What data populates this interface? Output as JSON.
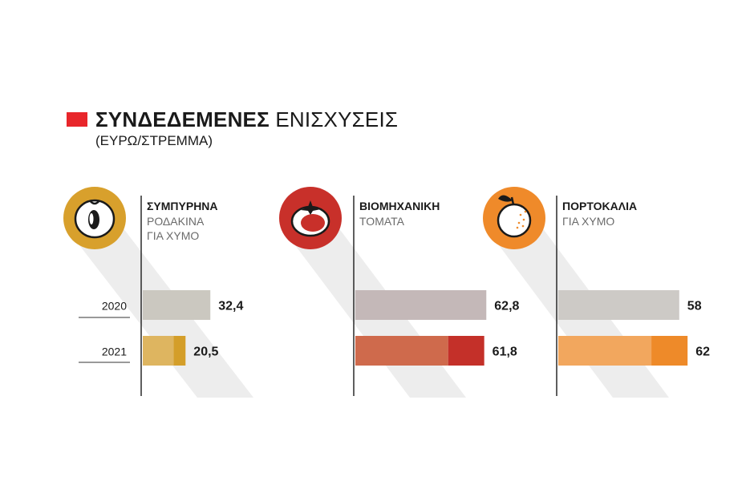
{
  "title_bold": "ΣΥΝΔΕΔΕΜΕΝΕΣ",
  "title_light": "ΕΝΙΣΧΥΣΕΙΣ",
  "subtitle": "(ΕΥΡΩ/ΣΤΡΕΜΜΑ)",
  "colors": {
    "title_box": "#e8262b",
    "text": "#1a1a1a",
    "label_light": "#6b6b6b",
    "axis": "#2a2a2a",
    "shadow": "#ededed",
    "row_line": "#333333"
  },
  "chart_data": {
    "type": "bar",
    "title": "ΣΥΝΔΕΔΕΜΕΝΕΣ ΕΝΙΣΧΥΣΕΙΣ",
    "subtitle": "(ΕΥΡΩ/ΣΤΡΕΜΜΑ)",
    "categories": [
      "2020",
      "2021"
    ],
    "xlim": [
      0,
      70
    ],
    "panels": [
      {
        "name_bold": "ΣΥΜΠΥΡΗΝΑ",
        "name_light_lines": [
          "ΡΟΔΑΚΙΝΑ",
          "ΓΙΑ ΧΥΜΟ"
        ],
        "icon": "peach-icon",
        "icon_color": "#d8a02c",
        "color_2020": "#cbc8c0",
        "color_2021_light": "#deb560",
        "color_2021_dark": "#d49e29",
        "values": [
          32.4,
          20.5
        ],
        "labels": [
          "32,4",
          "20,5"
        ]
      },
      {
        "name_bold": "ΒΙΟΜΗΧΑΝΙΚΗ",
        "name_light_lines": [
          "ΤΟΜΑΤΑ"
        ],
        "icon": "tomato-icon",
        "icon_color": "#c8302a",
        "color_2020": "#c4b8b8",
        "color_2021_light": "#cf6a4c",
        "color_2021_dark": "#c43029",
        "values": [
          62.8,
          61.8
        ],
        "labels": [
          "62,8",
          "61,8"
        ]
      },
      {
        "name_bold": "ΠΟΡΤΟΚΑΛΙΑ",
        "name_light_lines": [
          "ΓΙΑ ΧΥΜΟ"
        ],
        "icon": "orange-icon",
        "icon_color": "#ef8a2a",
        "color_2020": "#cdcac6",
        "color_2021_light": "#f2a75e",
        "color_2021_dark": "#ee8a29",
        "values": [
          58,
          62
        ],
        "labels": [
          "58",
          "62"
        ]
      }
    ]
  }
}
